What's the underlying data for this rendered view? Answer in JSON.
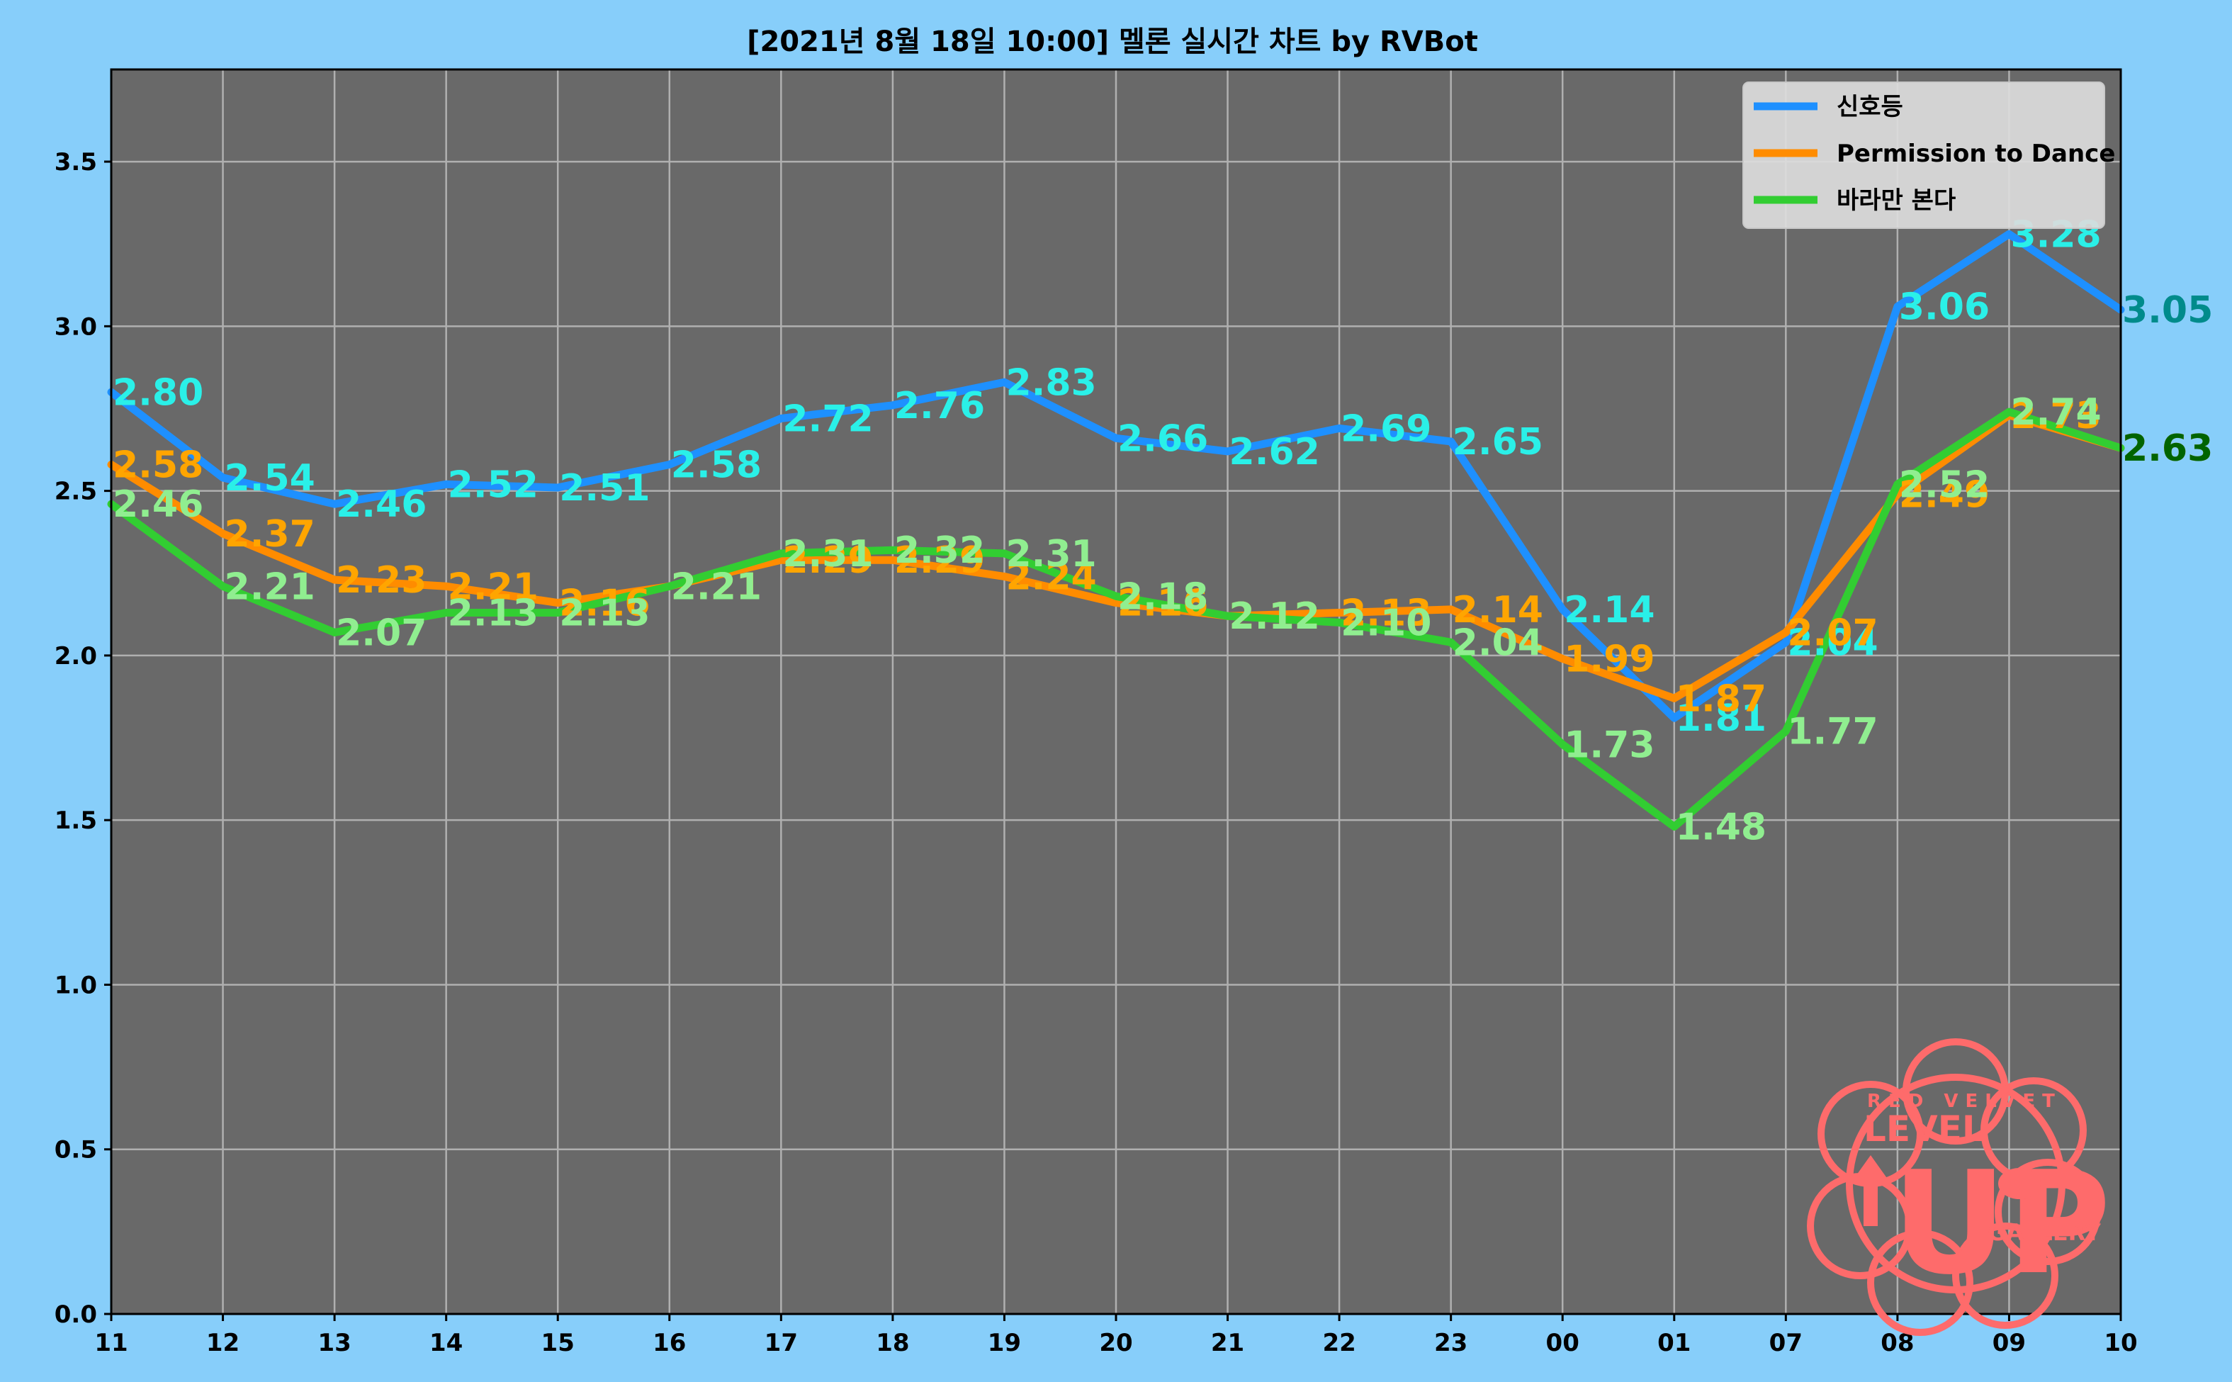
{
  "chart_data": {
    "type": "line",
    "title": "[2021년 8월 18일 10:00] 멜론 실시간 차트 by RVBot",
    "xlabel": "",
    "ylabel": "",
    "categories": [
      "11",
      "12",
      "13",
      "14",
      "15",
      "16",
      "17",
      "18",
      "19",
      "20",
      "21",
      "22",
      "23",
      "00",
      "01",
      "07",
      "08",
      "09",
      "10"
    ],
    "ylim": [
      0,
      3.78
    ],
    "yticks": [
      "0.0",
      "0.5",
      "1.0",
      "1.5",
      "2.0",
      "2.5",
      "3.0",
      "3.5"
    ],
    "grid": true,
    "legend_position": "top-right",
    "series": [
      {
        "name": "신호등",
        "color": "#1e90ff",
        "label_color": "#2af0e8",
        "values": [
          2.8,
          2.54,
          2.46,
          2.52,
          2.51,
          2.58,
          2.72,
          2.76,
          2.83,
          2.66,
          2.62,
          2.69,
          2.65,
          2.14,
          1.81,
          2.04,
          3.06,
          3.28,
          3.05
        ],
        "labels": [
          "2.80",
          "2.54",
          "2.46",
          "2.52",
          "2.51",
          "2.58",
          "2.72",
          "2.76",
          "2.83",
          "2.66",
          "2.62",
          "2.69",
          "2.65",
          "2.14",
          "1.81",
          "2.04",
          "3.06",
          "3.28",
          "3.05"
        ]
      },
      {
        "name": "Permission to Dance",
        "color": "#ff8c00",
        "label_color": "#ffa500",
        "values": [
          2.58,
          2.37,
          2.23,
          2.21,
          2.16,
          2.21,
          2.29,
          2.29,
          2.24,
          2.16,
          2.12,
          2.13,
          2.14,
          1.99,
          1.87,
          2.07,
          2.49,
          2.73,
          2.63
        ],
        "labels": [
          "2.58",
          "2.37",
          "2.23",
          "2.21",
          "2.16",
          "2.21",
          "2.29",
          "2.29",
          "2.24",
          "2.16",
          "2.12",
          "2.13",
          "2.14",
          "1.99",
          "1.87",
          "2.07",
          "2.49",
          "2.73",
          "2.63"
        ]
      },
      {
        "name": "바라만 본다",
        "color": "#32cd32",
        "label_color": "#90ee90",
        "values": [
          2.46,
          2.21,
          2.07,
          2.13,
          2.13,
          2.21,
          2.31,
          2.32,
          2.31,
          2.18,
          2.12,
          2.1,
          2.04,
          1.73,
          1.48,
          1.77,
          2.52,
          2.74,
          2.63
        ],
        "labels": [
          "2.46",
          "2.21",
          "2.07",
          "2.13",
          "2.13",
          "2.21",
          "2.31",
          "2.32",
          "2.31",
          "2.18",
          "2.12",
          "2.10",
          "2.04",
          "1.73",
          "1.48",
          "1.77",
          "2.52",
          "2.74",
          "2.63"
        ]
      }
    ],
    "last_label_colors": [
      "#008b8b",
      "#ff8c00",
      "#006400"
    ]
  },
  "logo": {
    "line1": "RED VELVET",
    "line2": "LEVEL",
    "line3": "UP",
    "line4": "GALLERY"
  },
  "colors": {
    "page_background": "#87cefa",
    "plot_background": "#696969",
    "grid": "#b0b0b0",
    "logo": "#fe6b6b"
  }
}
